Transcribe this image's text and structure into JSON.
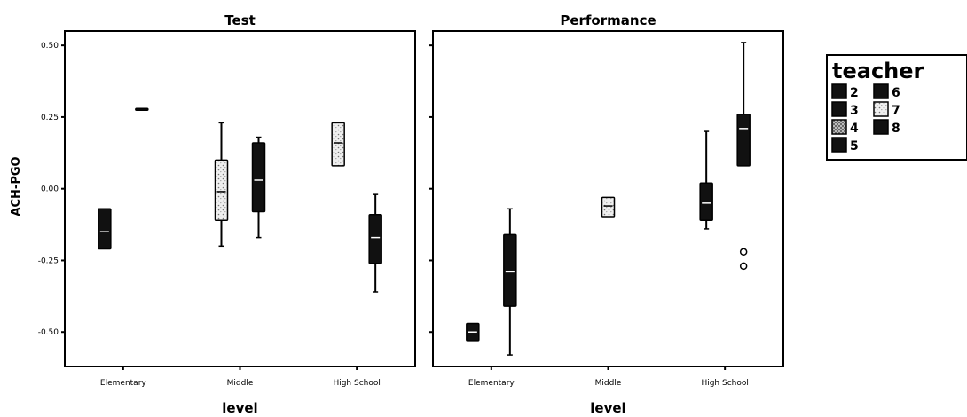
{
  "chart_data": {
    "type": "boxplot",
    "ylabel": "ACH-PGO",
    "xlabel": "level",
    "ylim": [
      -0.62,
      0.55
    ],
    "yticks": [
      0.5,
      0.25,
      0.0,
      -0.25,
      -0.5
    ],
    "ytick_labels": [
      "0.50",
      "0.25",
      "0.00",
      "-0.25",
      "-0.50"
    ],
    "categories": [
      "Elementary",
      "Middle",
      "High School"
    ],
    "legend": {
      "title": "teacher",
      "placement": "right",
      "entries": [
        {
          "label": "2",
          "color": "#111111",
          "pattern": "solid"
        },
        {
          "label": "6",
          "color": "#111111",
          "pattern": "solid"
        },
        {
          "label": "3",
          "color": "#111111",
          "pattern": "solid"
        },
        {
          "label": "7",
          "color": "#e4e4e4",
          "pattern": "light"
        },
        {
          "label": "4",
          "color": "#bdbdbd",
          "pattern": "hatched"
        },
        {
          "label": "8",
          "color": "#111111",
          "pattern": "solid"
        },
        {
          "label": "5",
          "color": "#111111",
          "pattern": "solid"
        }
      ]
    },
    "panels": [
      {
        "title": "Test",
        "boxes": [
          {
            "category": "Elementary",
            "slot": 0,
            "fill": "#111111",
            "min": -0.21,
            "q1": -0.21,
            "median": -0.15,
            "q3": -0.07,
            "max": -0.07,
            "outliers": []
          },
          {
            "category": "Elementary",
            "slot": 1,
            "fill": "#111111",
            "min": 0.28,
            "q1": 0.28,
            "median": 0.28,
            "q3": 0.28,
            "max": 0.28,
            "outliers": []
          },
          {
            "category": "Middle",
            "slot": 0,
            "fill": "#e8e8e8",
            "min": -0.2,
            "q1": -0.11,
            "median": -0.01,
            "q3": 0.1,
            "max": 0.23,
            "outliers": []
          },
          {
            "category": "Middle",
            "slot": 1,
            "fill": "#111111",
            "min": -0.17,
            "q1": -0.08,
            "median": 0.03,
            "q3": 0.16,
            "max": 0.18,
            "outliers": []
          },
          {
            "category": "High School",
            "slot": 0,
            "fill": "#e8e8e8",
            "min": 0.08,
            "q1": 0.08,
            "median": 0.16,
            "q3": 0.23,
            "max": 0.23,
            "outliers": []
          },
          {
            "category": "High School",
            "slot": 1,
            "fill": "#111111",
            "min": -0.36,
            "q1": -0.26,
            "median": -0.17,
            "q3": -0.09,
            "max": -0.02,
            "outliers": []
          }
        ]
      },
      {
        "title": "Performance",
        "boxes": [
          {
            "category": "Elementary",
            "slot": 0,
            "fill": "#111111",
            "min": -0.53,
            "q1": -0.53,
            "median": -0.5,
            "q3": -0.47,
            "max": -0.47,
            "outliers": []
          },
          {
            "category": "Elementary",
            "slot": 1,
            "fill": "#111111",
            "min": -0.58,
            "q1": -0.41,
            "median": -0.29,
            "q3": -0.16,
            "max": -0.07,
            "outliers": []
          },
          {
            "category": "Middle",
            "slot": 0.5,
            "fill": "#e8e8e8",
            "min": -0.1,
            "q1": -0.1,
            "median": -0.06,
            "q3": -0.03,
            "max": -0.03,
            "outliers": []
          },
          {
            "category": "High School",
            "slot": 0,
            "fill": "#111111",
            "min": -0.14,
            "q1": -0.11,
            "median": -0.05,
            "q3": 0.02,
            "max": 0.2,
            "outliers": []
          },
          {
            "category": "High School",
            "slot": 1,
            "fill": "#111111",
            "min": 0.08,
            "q1": 0.08,
            "median": 0.21,
            "q3": 0.26,
            "max": 0.51,
            "outliers": [
              -0.22,
              -0.27
            ]
          }
        ]
      }
    ]
  }
}
